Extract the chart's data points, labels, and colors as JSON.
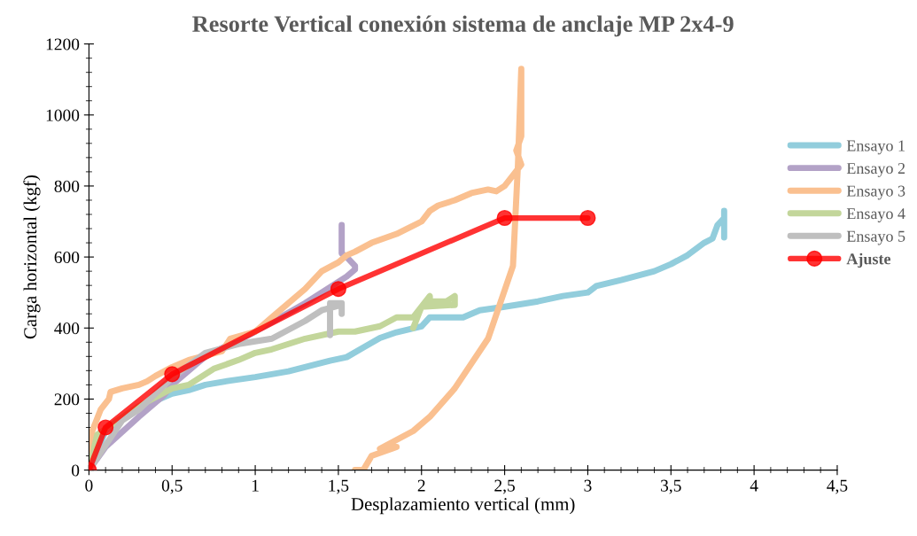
{
  "chart_data": {
    "type": "line",
    "title": "Resorte Vertical conexión sistema de anclaje MP 2x4-9",
    "xlabel": "Desplazamiento vertical (mm)",
    "ylabel": "Carga horizontal (kgf)",
    "xlim": [
      0,
      4.5
    ],
    "ylim": [
      0,
      1200
    ],
    "xticks": [
      0,
      {
        "value": 0.5,
        "label": "0,5"
      },
      1,
      {
        "value": 1.5,
        "label": "1,5"
      },
      2,
      {
        "value": 2.5,
        "label": "2,5"
      },
      3,
      {
        "value": 3.5,
        "label": "3,5"
      },
      4,
      {
        "value": 4.5,
        "label": "4,5"
      }
    ],
    "yticks": [
      0,
      200,
      400,
      600,
      800,
      1000,
      1200
    ],
    "grid": false,
    "legend": "right",
    "marker": "none",
    "line_style": "solid",
    "series": [
      {
        "name": "Ensayo 1",
        "color": "#92cddc",
        "x": [
          0,
          0.1,
          0.3,
          0.5,
          0.6,
          0.7,
          0.85,
          1.0,
          1.2,
          1.45,
          1.55,
          1.65,
          1.75,
          1.85,
          2.0,
          2.05,
          2.25,
          2.35,
          2.5,
          2.7,
          2.85,
          3.0,
          3.05,
          3.2,
          3.4,
          3.5,
          3.6,
          3.7,
          3.75,
          3.78,
          3.82,
          3.82,
          3.82
        ],
        "values": [
          0,
          110,
          175,
          215,
          225,
          240,
          252,
          262,
          278,
          308,
          318,
          345,
          372,
          388,
          405,
          430,
          430,
          450,
          460,
          475,
          490,
          500,
          518,
          535,
          560,
          580,
          605,
          640,
          652,
          690,
          710,
          730,
          655
        ]
      },
      {
        "name": "Ensayo 2",
        "color": "#b3a2c7",
        "x": [
          0,
          0.1,
          0.3,
          0.45,
          0.5,
          0.7,
          1.0,
          1.3,
          1.5,
          1.55,
          1.6,
          1.6,
          1.55,
          1.52,
          1.52
        ],
        "values": [
          0,
          65,
          150,
          210,
          240,
          320,
          390,
          470,
          530,
          545,
          565,
          575,
          600,
          610,
          690
        ]
      },
      {
        "name": "Ensayo 3",
        "color": "#fac090",
        "x": [
          0,
          0.02,
          0.07,
          0.12,
          0.13,
          0.2,
          0.3,
          0.35,
          0.4,
          0.5,
          0.6,
          0.8,
          0.85,
          1.0,
          1.1,
          1.2,
          1.3,
          1.4,
          1.5,
          1.55,
          1.6,
          1.7,
          1.85,
          2.0,
          2.05,
          2.1,
          2.2,
          2.3,
          2.4,
          2.45,
          2.5,
          2.55,
          2.6,
          2.57,
          2.6,
          2.6,
          2.58,
          2.55,
          2.4,
          2.2,
          2.05,
          1.95,
          1.75,
          1.85,
          1.7,
          1.65,
          1.6
        ],
        "values": [
          0,
          110,
          170,
          200,
          220,
          230,
          240,
          250,
          265,
          290,
          310,
          335,
          370,
          390,
          430,
          470,
          510,
          560,
          585,
          605,
          615,
          640,
          665,
          700,
          730,
          745,
          760,
          780,
          790,
          785,
          800,
          830,
          860,
          900,
          940,
          1130,
          860,
          575,
          370,
          230,
          150,
          110,
          60,
          65,
          40,
          0,
          0
        ]
      },
      {
        "name": "Ensayo 4",
        "color": "#c3d69b",
        "x": [
          0,
          0.05,
          0.3,
          0.5,
          0.6,
          0.75,
          0.9,
          1.0,
          1.1,
          1.3,
          1.5,
          1.6,
          1.75,
          1.85,
          1.95,
          2.0,
          2.05,
          2.05,
          2.15,
          2.2,
          2.2,
          2.0,
          1.95
        ],
        "values": [
          0,
          100,
          180,
          230,
          240,
          285,
          310,
          330,
          340,
          370,
          390,
          390,
          405,
          430,
          430,
          460,
          490,
          475,
          475,
          490,
          465,
          460,
          400
        ]
      },
      {
        "name": "Ensayo 5",
        "color": "#bfbfbf",
        "x": [
          0,
          0.2,
          0.3,
          0.5,
          0.7,
          0.9,
          1.1,
          1.3,
          1.4,
          1.52,
          1.52,
          1.52,
          1.45,
          1.45
        ],
        "values": [
          0,
          140,
          170,
          260,
          330,
          355,
          370,
          420,
          450,
          465,
          440,
          470,
          470,
          380
        ]
      },
      {
        "name": "Ajuste",
        "color": "#ff0000",
        "marker": "circle",
        "x": [
          0,
          0.1,
          0.5,
          1.5,
          2.5,
          3.0
        ],
        "values": [
          0,
          120,
          270,
          510,
          710,
          710
        ]
      }
    ]
  }
}
